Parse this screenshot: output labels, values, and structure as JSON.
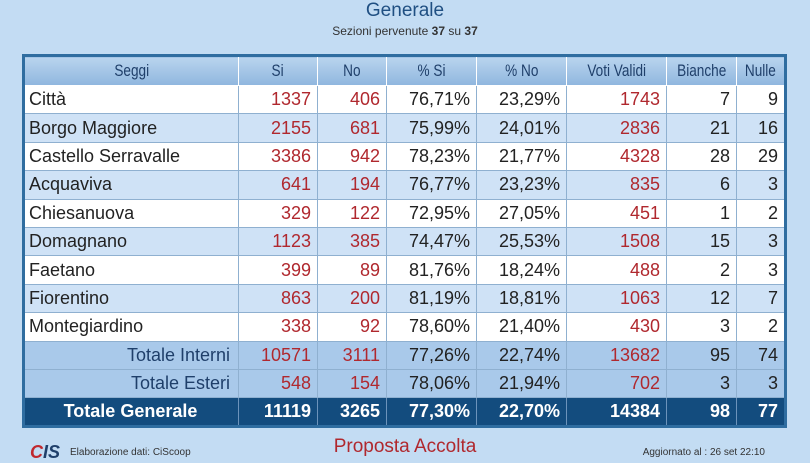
{
  "title": "Generale",
  "subtitle": {
    "prefix": "Sezioni pervenute",
    "received": "37",
    "sep": "su",
    "total": "37"
  },
  "headers": [
    "Seggi",
    "Si",
    "No",
    "% Si",
    "% No",
    "Voti Validi",
    "Bianche",
    "Nulle"
  ],
  "rows": [
    [
      "Città",
      "1337",
      "406",
      "76,71%",
      "23,29%",
      "1743",
      "7",
      "9"
    ],
    [
      "Borgo Maggiore",
      "2155",
      "681",
      "75,99%",
      "24,01%",
      "2836",
      "21",
      "16"
    ],
    [
      "Castello Serravalle",
      "3386",
      "942",
      "78,23%",
      "21,77%",
      "4328",
      "28",
      "29"
    ],
    [
      "Acquaviva",
      "641",
      "194",
      "76,77%",
      "23,23%",
      "835",
      "6",
      "3"
    ],
    [
      "Chiesanuova",
      "329",
      "122",
      "72,95%",
      "27,05%",
      "451",
      "1",
      "2"
    ],
    [
      "Domagnano",
      "1123",
      "385",
      "74,47%",
      "25,53%",
      "1508",
      "15",
      "3"
    ],
    [
      "Faetano",
      "399",
      "89",
      "81,76%",
      "18,24%",
      "488",
      "2",
      "3"
    ],
    [
      "Fiorentino",
      "863",
      "200",
      "81,19%",
      "18,81%",
      "1063",
      "12",
      "7"
    ],
    [
      "Montegiardino",
      "338",
      "92",
      "78,60%",
      "21,40%",
      "430",
      "3",
      "2"
    ]
  ],
  "totals": [
    [
      "Totale Interni",
      "10571",
      "3111",
      "77,26%",
      "22,74%",
      "13682",
      "95",
      "74"
    ],
    [
      "Totale Esteri",
      "548",
      "154",
      "78,06%",
      "21,94%",
      "702",
      "3",
      "3"
    ]
  ],
  "grand_total": [
    "Totale Generale",
    "11119",
    "3265",
    "77,30%",
    "22,70%",
    "14384",
    "98",
    "77"
  ],
  "footer": {
    "logo": "CIS",
    "source": "Elaborazione dati: CiScoop",
    "result": "Proposta Accolta",
    "updated": "Aggiornato al : 26 set 22:10"
  }
}
